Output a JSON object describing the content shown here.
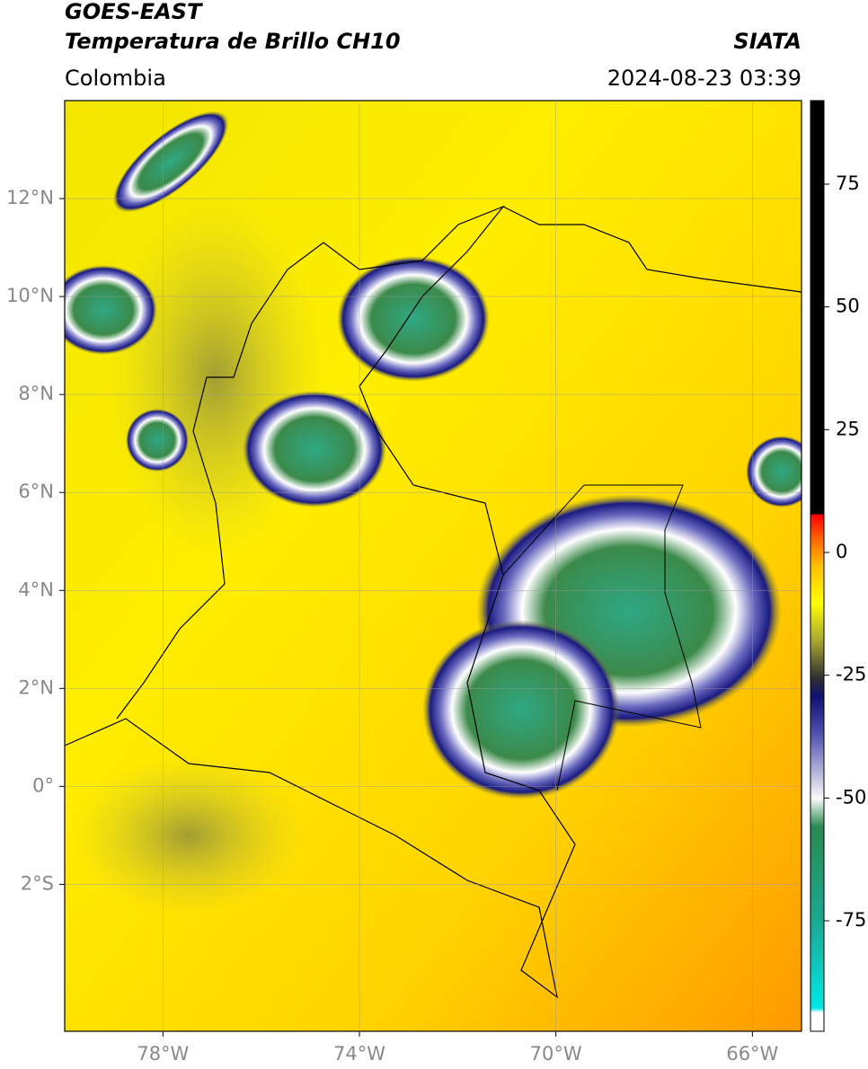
{
  "header": {
    "title": "GOES-EAST",
    "subtitle": "Temperatura de Brillo CH10",
    "source": "SIATA",
    "region": "Colombia",
    "datetime": "2024-08-23 03:39"
  },
  "map": {
    "xlim": [
      -80,
      -65
    ],
    "ylim": [
      -5,
      14
    ],
    "grid": true,
    "xticks": [
      {
        "value": -78,
        "label": "78°W"
      },
      {
        "value": -74,
        "label": "74°W"
      },
      {
        "value": -70,
        "label": "70°W"
      },
      {
        "value": -66,
        "label": "66°W"
      }
    ],
    "yticks": [
      {
        "value": 12,
        "label": "12°N"
      },
      {
        "value": 10,
        "label": "10°N"
      },
      {
        "value": 8,
        "label": "8°N"
      },
      {
        "value": 6,
        "label": "6°N"
      },
      {
        "value": 4,
        "label": "4°N"
      },
      {
        "value": 2,
        "label": "2°N"
      },
      {
        "value": 0,
        "label": "0°"
      },
      {
        "value": -2,
        "label": "2°S"
      }
    ]
  },
  "colorbar": {
    "lim": [
      -97.5,
      92
    ],
    "ticks": [
      75,
      50,
      25,
      0,
      -25,
      -50,
      -75
    ]
  }
}
